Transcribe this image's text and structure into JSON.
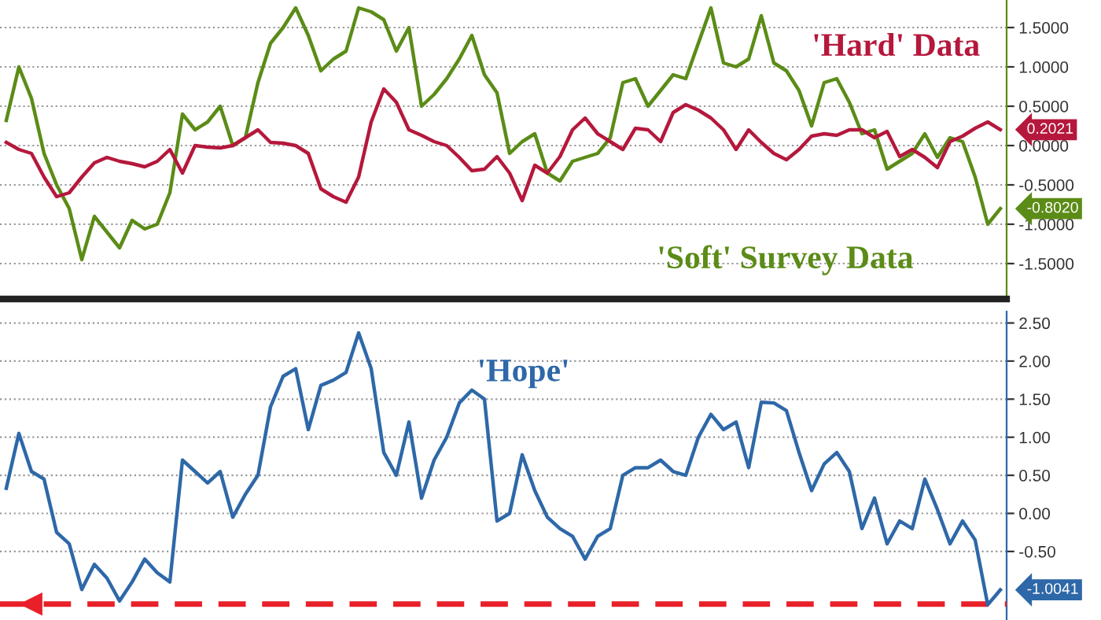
{
  "chart_data": [
    {
      "type": "line",
      "categories": [
        null,
        null,
        null,
        null,
        null,
        null,
        null,
        null,
        null,
        null,
        null,
        null,
        null,
        null,
        null,
        null,
        null,
        null,
        null,
        null,
        null,
        null,
        null,
        null,
        null,
        null,
        null,
        null,
        null,
        null,
        null,
        null,
        null,
        null,
        null,
        null,
        null,
        null,
        null,
        null,
        null,
        null,
        null,
        null,
        null,
        null,
        null,
        null,
        null,
        null,
        null,
        null,
        null,
        null,
        null,
        null,
        null,
        null,
        null,
        null,
        null,
        null,
        null,
        null,
        null,
        null,
        null,
        null,
        null,
        null,
        null,
        null,
        null,
        null,
        null,
        null,
        null,
        null,
        null,
        null
      ],
      "series": [
        {
          "name": "'Soft' Survey Data",
          "color": "#5b8c17",
          "values": [
            0.32,
            1.0,
            0.6,
            -0.1,
            -0.5,
            -0.8,
            -1.45,
            -0.9,
            -1.1,
            -1.3,
            -0.95,
            -1.06,
            -1.0,
            -0.6,
            0.4,
            0.2,
            0.3,
            0.5,
            0.0,
            0.1,
            0.8,
            1.3,
            1.5,
            1.75,
            1.4,
            0.95,
            1.1,
            1.2,
            1.75,
            1.7,
            1.6,
            1.2,
            1.5,
            0.5,
            0.65,
            0.85,
            1.1,
            1.4,
            0.9,
            0.67,
            -0.1,
            0.05,
            0.15,
            -0.35,
            -0.45,
            -0.2,
            -0.15,
            -0.1,
            0.1,
            0.8,
            0.85,
            0.5,
            0.7,
            0.9,
            0.85,
            1.3,
            1.75,
            1.05,
            1.0,
            1.1,
            1.65,
            1.05,
            0.95,
            0.7,
            0.25,
            0.8,
            0.85,
            0.55,
            0.15,
            0.2,
            -0.3,
            -0.2,
            -0.1,
            0.15,
            -0.15,
            0.1,
            0.05,
            -0.4,
            -1.0,
            -0.802
          ],
          "value_labels": [
            null,
            null,
            null,
            null,
            null,
            null,
            null,
            null,
            null,
            null,
            null,
            null,
            null,
            null,
            null,
            null,
            null,
            null,
            null,
            null,
            null,
            null,
            null,
            null,
            null,
            null,
            null,
            null,
            null,
            null,
            null,
            null,
            null,
            null,
            null,
            null,
            null,
            null,
            null,
            null,
            null,
            null,
            null,
            null,
            null,
            null,
            null,
            null,
            null,
            null,
            null,
            null,
            null,
            null,
            null,
            null,
            null,
            null,
            null,
            null,
            null,
            null,
            null,
            null,
            null,
            null,
            null,
            null,
            null,
            null,
            null,
            null,
            null,
            null,
            null,
            null,
            null,
            null,
            null,
            "-0.8020"
          ]
        },
        {
          "name": "'Hard' Data",
          "color": "#b5183c",
          "values": [
            0.04,
            -0.05,
            -0.1,
            -0.4,
            -0.65,
            -0.6,
            -0.4,
            -0.22,
            -0.15,
            -0.2,
            -0.23,
            -0.27,
            -0.2,
            -0.05,
            -0.35,
            0.0,
            -0.02,
            -0.03,
            0.0,
            0.1,
            0.2,
            0.04,
            0.03,
            0.0,
            -0.1,
            -0.55,
            -0.65,
            -0.72,
            -0.4,
            0.3,
            0.72,
            0.55,
            0.2,
            0.13,
            0.05,
            0.0,
            -0.15,
            -0.32,
            -0.3,
            -0.14,
            -0.35,
            -0.7,
            -0.25,
            -0.35,
            -0.14,
            0.2,
            0.35,
            0.15,
            0.05,
            -0.05,
            0.22,
            0.2,
            0.05,
            0.42,
            0.52,
            0.45,
            0.35,
            0.2,
            -0.05,
            0.2,
            0.04,
            -0.1,
            -0.18,
            -0.05,
            0.12,
            0.15,
            0.13,
            0.2,
            0.2,
            0.1,
            0.18,
            -0.14,
            -0.05,
            -0.15,
            -0.28,
            0.05,
            0.12,
            0.22,
            0.3,
            0.2021
          ],
          "value_labels": [
            null,
            null,
            null,
            null,
            null,
            null,
            null,
            null,
            null,
            null,
            null,
            null,
            null,
            null,
            null,
            null,
            null,
            null,
            null,
            null,
            null,
            null,
            null,
            null,
            null,
            null,
            null,
            null,
            null,
            null,
            null,
            null,
            null,
            null,
            null,
            null,
            null,
            null,
            null,
            null,
            null,
            null,
            null,
            null,
            null,
            null,
            null,
            null,
            null,
            null,
            null,
            null,
            null,
            null,
            null,
            null,
            null,
            null,
            null,
            null,
            null,
            null,
            null,
            null,
            null,
            null,
            null,
            null,
            null,
            null,
            null,
            null,
            null,
            null,
            null,
            null,
            null,
            null,
            null,
            "0.2021"
          ]
        }
      ],
      "ylim": [
        -1.95,
        1.85
      ],
      "yticks": [
        {
          "value": -1.5,
          "label": "-1.5000"
        },
        {
          "value": -1.0,
          "label": "-1.0000"
        },
        {
          "value": -0.5,
          "label": "-0.5000"
        },
        {
          "value": 0.0,
          "label": "0.0000"
        },
        {
          "value": 0.5,
          "label": "0.5000"
        },
        {
          "value": 1.0,
          "label": "1.0000"
        },
        {
          "value": 1.5,
          "label": "1.5000"
        }
      ],
      "grid": "y",
      "tick_labels": "y",
      "legend": false,
      "line_style": "solid",
      "marker": "none"
    },
    {
      "type": "line",
      "categories": [
        null,
        null,
        null,
        null,
        null,
        null,
        null,
        null,
        null,
        null,
        null,
        null,
        null,
        null,
        null,
        null,
        null,
        null,
        null,
        null,
        null,
        null,
        null,
        null,
        null,
        null,
        null,
        null,
        null,
        null,
        null,
        null,
        null,
        null,
        null,
        null,
        null,
        null,
        null,
        null,
        null,
        null,
        null,
        null,
        null,
        null,
        null,
        null,
        null,
        null,
        null,
        null,
        null,
        null,
        null,
        null,
        null,
        null,
        null,
        null,
        null,
        null,
        null,
        null,
        null,
        null,
        null,
        null,
        null,
        null,
        null,
        null,
        null,
        null,
        null,
        null,
        null,
        null,
        null,
        null
      ],
      "series": [
        {
          "name": "'Hope'",
          "color": "#2e68a8",
          "values": [
            0.33,
            1.05,
            0.55,
            0.45,
            -0.25,
            -0.4,
            -1.0,
            -0.67,
            -0.85,
            -1.15,
            -0.9,
            -0.6,
            -0.78,
            -0.9,
            0.7,
            0.55,
            0.4,
            0.55,
            -0.05,
            0.25,
            0.5,
            1.4,
            1.8,
            1.9,
            1.1,
            1.68,
            1.75,
            1.85,
            2.37,
            1.9,
            0.8,
            0.5,
            1.2,
            0.2,
            0.7,
            1.0,
            1.45,
            1.62,
            1.5,
            -0.1,
            0.0,
            0.77,
            0.3,
            -0.05,
            -0.2,
            -0.3,
            -0.6,
            -0.3,
            -0.2,
            0.5,
            0.6,
            0.6,
            0.7,
            0.55,
            0.5,
            1.0,
            1.3,
            1.1,
            1.2,
            0.6,
            1.46,
            1.45,
            1.35,
            0.8,
            0.3,
            0.65,
            0.8,
            0.55,
            -0.2,
            0.2,
            -0.4,
            -0.1,
            -0.2,
            0.45,
            0.05,
            -0.4,
            -0.1,
            -0.35,
            -1.2,
            -1.0041
          ],
          "value_labels": [
            null,
            null,
            null,
            null,
            null,
            null,
            null,
            null,
            null,
            null,
            null,
            null,
            null,
            null,
            null,
            null,
            null,
            null,
            null,
            null,
            null,
            null,
            null,
            null,
            null,
            null,
            null,
            null,
            null,
            null,
            null,
            null,
            null,
            null,
            null,
            null,
            null,
            null,
            null,
            null,
            null,
            null,
            null,
            null,
            null,
            null,
            null,
            null,
            null,
            null,
            null,
            null,
            null,
            null,
            null,
            null,
            null,
            null,
            null,
            null,
            null,
            null,
            null,
            null,
            null,
            null,
            null,
            null,
            null,
            null,
            null,
            null,
            null,
            null,
            null,
            null,
            null,
            null,
            null,
            "-1.0041"
          ]
        }
      ],
      "ylim": [
        -1.4,
        2.65
      ],
      "yticks": [
        {
          "value": -0.5,
          "label": "-0.50"
        },
        {
          "value": 0.0,
          "label": "0.00"
        },
        {
          "value": 0.5,
          "label": "0.50"
        },
        {
          "value": 1.0,
          "label": "1.00"
        },
        {
          "value": 1.5,
          "label": "1.50"
        },
        {
          "value": 2.0,
          "label": "2.00"
        },
        {
          "value": 2.5,
          "label": "2.50"
        }
      ],
      "ref_lines": [
        {
          "axis": "y",
          "value": -1.19,
          "color": "#e8202a",
          "line_style": "dashed"
        }
      ],
      "grid": "y",
      "tick_labels": "y",
      "legend": false,
      "line_style": "solid",
      "marker": "none"
    }
  ]
}
